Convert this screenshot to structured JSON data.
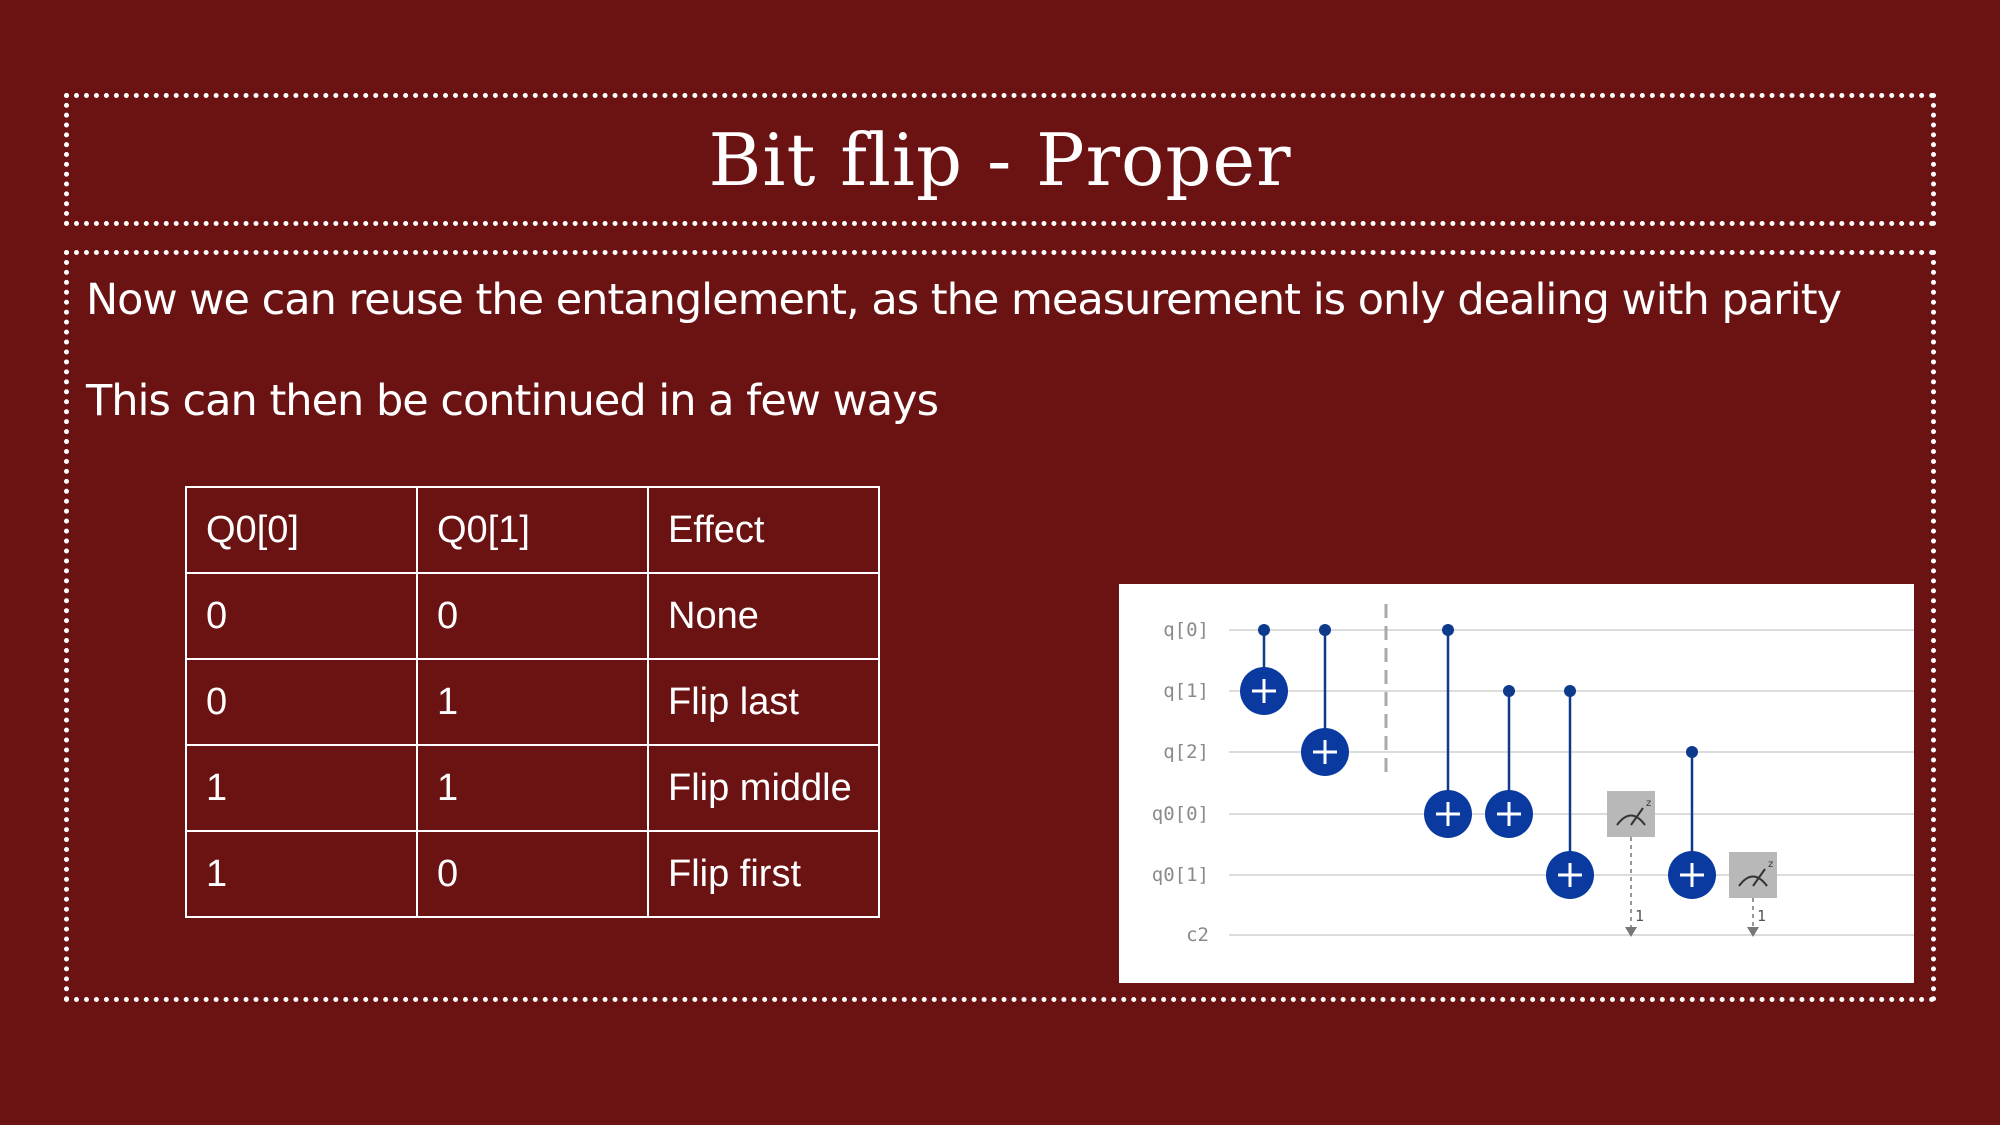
{
  "slide": {
    "title": "Bit flip - Proper",
    "paragraph1": "Now we can reuse the entanglement, as the measurement is only dealing with parity",
    "paragraph2": "This can then be continued in a few ways"
  },
  "table": {
    "headers": [
      "Q0[0]",
      "Q0[1]",
      "Effect"
    ],
    "rows": [
      [
        "0",
        "0",
        "None"
      ],
      [
        "0",
        "1",
        "Flip last"
      ],
      [
        "1",
        "1",
        "Flip middle"
      ],
      [
        "1",
        "0",
        "Flip first"
      ]
    ]
  },
  "circuit": {
    "wires": [
      "q[0]",
      "q[1]",
      "q[2]",
      "q0[0]",
      "q0[1]",
      "c2"
    ],
    "measure_bits": [
      "1",
      "1"
    ],
    "colors": {
      "gate": "#0a3aa0",
      "background": "#6b1213"
    }
  }
}
